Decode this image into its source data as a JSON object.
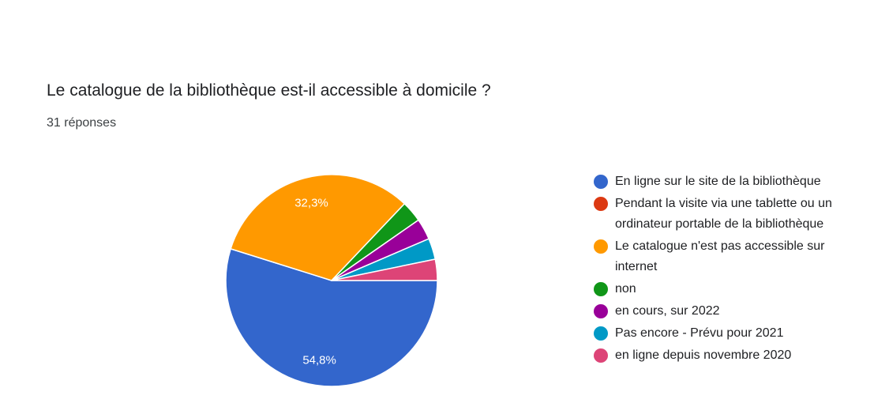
{
  "question": {
    "title": "Le catalogue de la bibliothèque est-il accessible à domicile ?",
    "responses": "31 réponses"
  },
  "chart_data": {
    "type": "pie",
    "total_responses": 31,
    "start": "3 o'clock, clockwise",
    "slices": [
      {
        "label": "En ligne sur le site de la bibliothèque",
        "count": 17,
        "percent": 54.8,
        "data_label": "54,8%",
        "color": "#3366cc"
      },
      {
        "label": "Pendant la visite via une tablette ou un ordinateur portable de la bibliothèque",
        "count": 0,
        "percent": 0,
        "data_label": "",
        "color": "#dc3912"
      },
      {
        "label": "Le catalogue n'est pas accessible sur internet",
        "count": 10,
        "percent": 32.3,
        "data_label": "32,3%",
        "color": "#ff9900"
      },
      {
        "label": "non",
        "count": 1,
        "percent": 3.2,
        "data_label": "",
        "color": "#109618"
      },
      {
        "label": "en cours, sur 2022",
        "count": 1,
        "percent": 3.2,
        "data_label": "",
        "color": "#990099"
      },
      {
        "label": "Pas encore - Prévu pour 2021",
        "count": 1,
        "percent": 3.2,
        "data_label": "",
        "color": "#0099c6"
      },
      {
        "label": "en ligne depuis novembre 2020",
        "count": 1,
        "percent": 3.2,
        "data_label": "",
        "color": "#dd4477"
      }
    ],
    "legend_position": "right"
  }
}
